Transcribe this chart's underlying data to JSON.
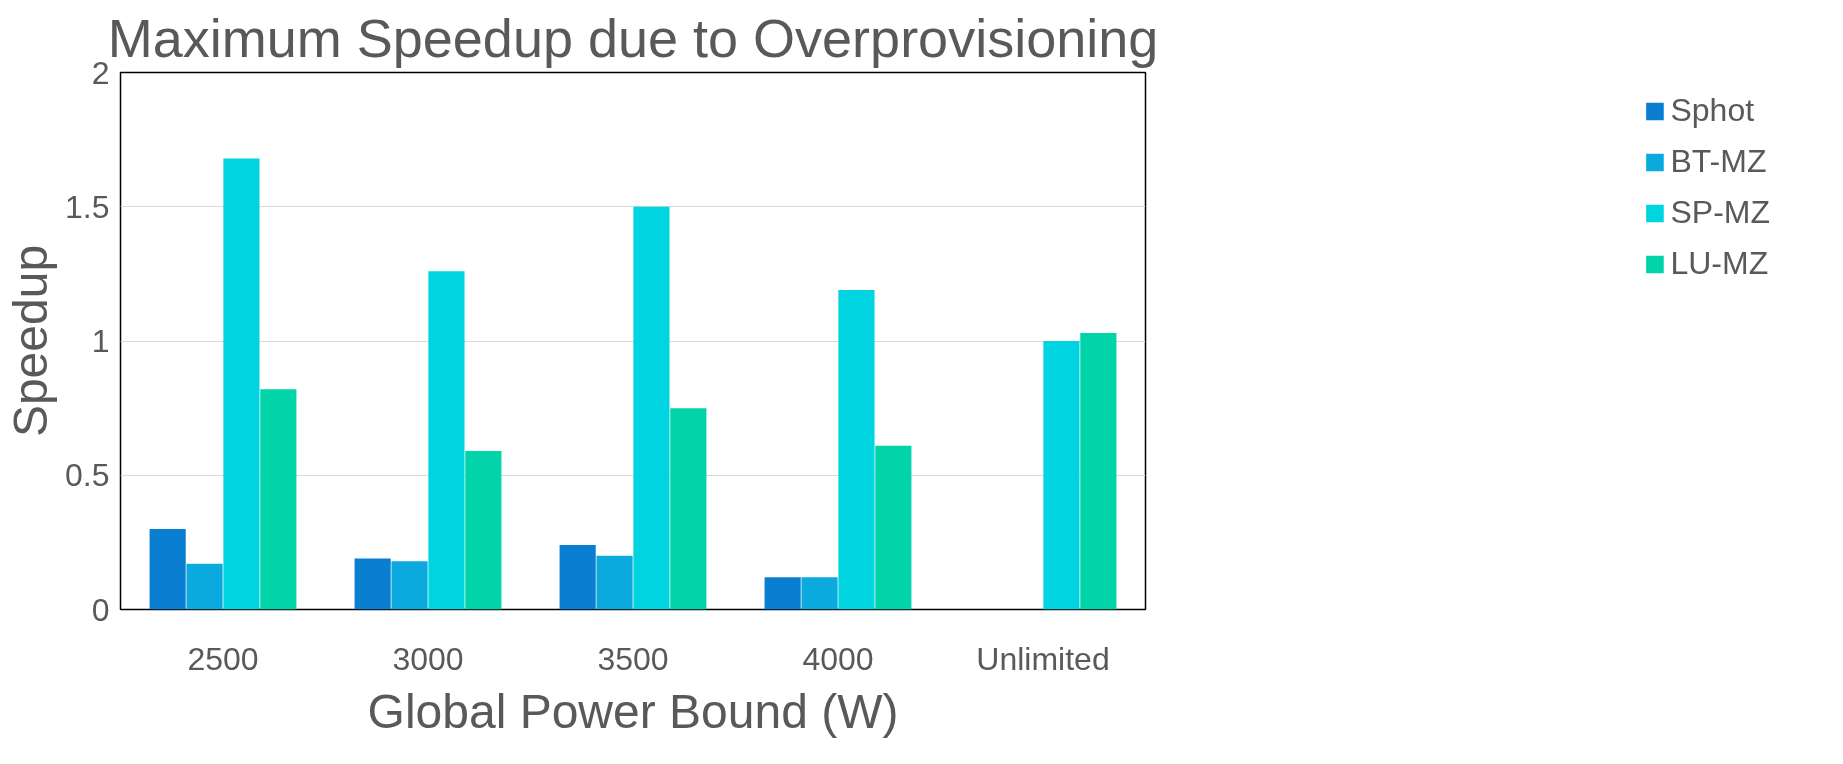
{
  "chart_data": {
    "type": "bar",
    "title": "Maximum Speedup due to Overprovisioning",
    "xlabel": "Global Power Bound (W)",
    "ylabel": "Speedup",
    "categories": [
      "2500",
      "3000",
      "3500",
      "4000",
      "Unlimited"
    ],
    "series": [
      {
        "name": "Sphot",
        "color": "#0a7fd1",
        "values": [
          0.3,
          0.19,
          0.24,
          0.12,
          0
        ]
      },
      {
        "name": "BT-MZ",
        "color": "#0aa9de",
        "values": [
          0.17,
          0.18,
          0.2,
          0.12,
          0
        ]
      },
      {
        "name": "SP-MZ",
        "color": "#00d4e0",
        "values": [
          1.68,
          1.26,
          1.5,
          1.19,
          1.0
        ]
      },
      {
        "name": "LU-MZ",
        "color": "#00d4a8",
        "values": [
          0.82,
          0.59,
          0.75,
          0.61,
          1.03
        ]
      }
    ],
    "ylim": [
      0,
      2
    ],
    "yticks": [
      0,
      0.5,
      1,
      1.5,
      2
    ],
    "grid": "y",
    "legend": "right"
  }
}
